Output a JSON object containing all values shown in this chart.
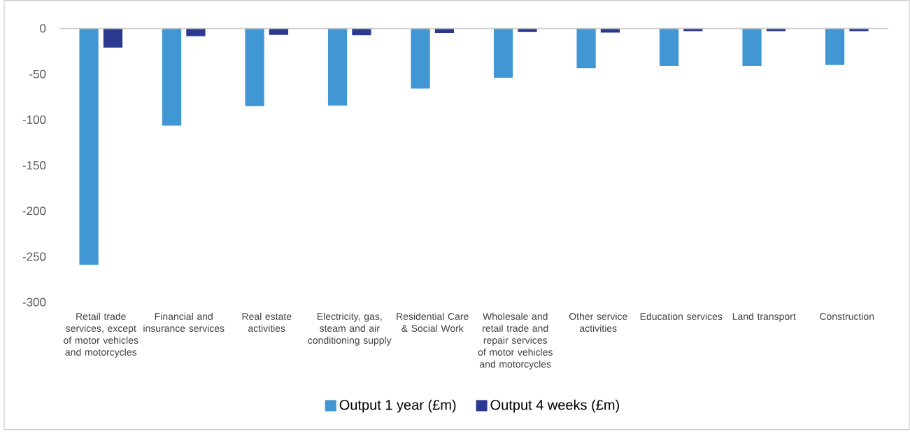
{
  "chart_data": {
    "type": "bar",
    "categories": [
      "Retail trade services, except of motor vehicles and motorcycles",
      "Financial and insurance services",
      "Real estate activities",
      "Electricity, gas, steam and air conditioning supply",
      "Residential Care & Social Work",
      "Wholesale and retail trade and repair services of motor vehicles and motorcycles",
      "Other service activities",
      "Education services",
      "Land transport",
      "Construction"
    ],
    "series": [
      {
        "name": "Output 1 year (£m)",
        "color": "#4097d4",
        "values": [
          -259,
          -106.5,
          -85,
          -84.5,
          -66,
          -54,
          -43.5,
          -41,
          -41,
          -40
        ]
      },
      {
        "name": "Output 4 weeks (£m)",
        "color": "#2b3990",
        "values": [
          -21,
          -8.5,
          -7,
          -7.5,
          -5,
          -4,
          -4.5,
          -3,
          -3,
          -3
        ]
      }
    ],
    "ylim": [
      -300,
      0
    ],
    "yticks": [
      -300,
      -250,
      -200,
      -150,
      -100,
      -50,
      0
    ],
    "legend": "bottom",
    "grid": false
  }
}
